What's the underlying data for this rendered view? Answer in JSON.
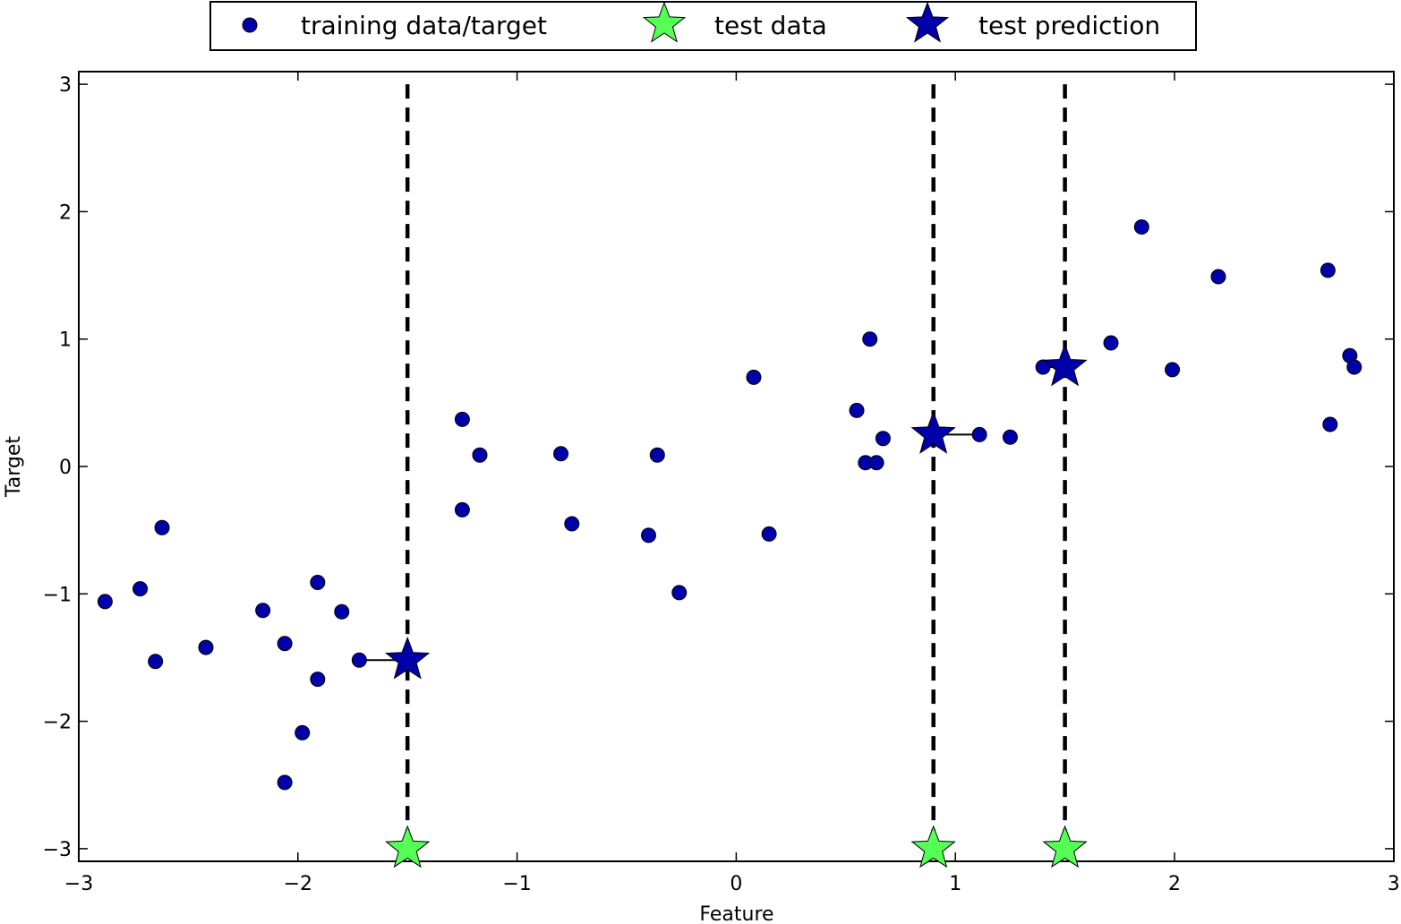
{
  "chart_data": {
    "type": "scatter",
    "xlabel": "Feature",
    "ylabel": "Target",
    "xlim": [
      -3,
      3
    ],
    "ylim": [
      -3.1,
      3.1
    ],
    "xticks": [
      -3,
      -2,
      -1,
      0,
      1,
      2,
      3
    ],
    "yticks": [
      -3,
      -2,
      -1,
      0,
      1,
      2,
      3
    ],
    "xtick_labels": [
      "−3",
      "−2",
      "−1",
      "0",
      "1",
      "2",
      "3"
    ],
    "ytick_labels": [
      "−3",
      "−2",
      "−1",
      "0",
      "1",
      "2",
      "3"
    ],
    "legend": {
      "placement": "top-center-outside",
      "entries": [
        "training data/target",
        "test data",
        "test prediction"
      ]
    },
    "colors": {
      "training": "#0000aa",
      "test_data": "#55ff55",
      "test_prediction": "#0000aa",
      "lines": "#000000"
    },
    "series": [
      {
        "name": "training data/target",
        "marker": "circle",
        "points": [
          [
            -2.88,
            -1.06
          ],
          [
            -2.72,
            -0.96
          ],
          [
            -2.65,
            -1.53
          ],
          [
            -2.62,
            -0.48
          ],
          [
            -2.42,
            -1.42
          ],
          [
            -2.16,
            -1.13
          ],
          [
            -2.06,
            -1.39
          ],
          [
            -2.06,
            -2.48
          ],
          [
            -1.98,
            -2.09
          ],
          [
            -1.91,
            -0.91
          ],
          [
            -1.91,
            -1.67
          ],
          [
            -1.8,
            -1.14
          ],
          [
            -1.72,
            -1.52
          ],
          [
            -1.25,
            0.37
          ],
          [
            -1.25,
            -0.34
          ],
          [
            -1.17,
            0.09
          ],
          [
            -0.8,
            0.1
          ],
          [
            -0.75,
            -0.45
          ],
          [
            -0.4,
            -0.54
          ],
          [
            -0.36,
            0.09
          ],
          [
            -0.26,
            -0.99
          ],
          [
            0.08,
            0.7
          ],
          [
            0.15,
            -0.53
          ],
          [
            0.55,
            0.44
          ],
          [
            0.59,
            0.03
          ],
          [
            0.61,
            1.0
          ],
          [
            0.64,
            0.03
          ],
          [
            0.67,
            0.22
          ],
          [
            1.11,
            0.25
          ],
          [
            1.25,
            0.23
          ],
          [
            1.4,
            0.78
          ],
          [
            1.71,
            0.97
          ],
          [
            1.85,
            1.88
          ],
          [
            1.99,
            0.76
          ],
          [
            2.2,
            1.49
          ],
          [
            2.7,
            1.54
          ],
          [
            2.71,
            0.33
          ],
          [
            2.8,
            0.87
          ],
          [
            2.82,
            0.78
          ]
        ]
      },
      {
        "name": "test data",
        "marker": "star",
        "points": [
          [
            -1.5,
            -3.0
          ],
          [
            0.9,
            -3.0
          ],
          [
            1.5,
            -3.0
          ]
        ]
      },
      {
        "name": "test prediction",
        "marker": "star",
        "points": [
          [
            -1.5,
            -1.52
          ],
          [
            0.9,
            0.25
          ],
          [
            1.5,
            0.78
          ]
        ]
      }
    ],
    "neighbor_links": [
      [
        [
          -1.72,
          -1.52
        ],
        [
          -1.5,
          -1.52
        ]
      ],
      [
        [
          1.11,
          0.25
        ],
        [
          0.9,
          0.25
        ]
      ],
      [
        [
          1.4,
          0.78
        ],
        [
          1.5,
          0.78
        ]
      ]
    ],
    "vertical_dashed_lines": [
      -1.5,
      0.9,
      1.5
    ]
  }
}
